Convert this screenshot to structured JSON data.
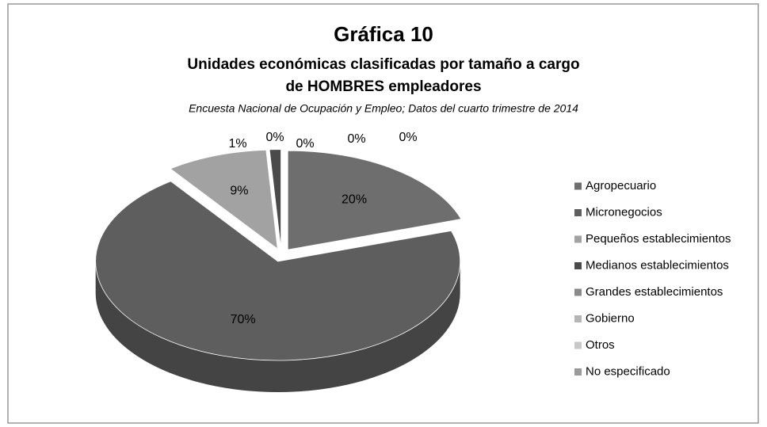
{
  "chart_data": {
    "type": "pie3d",
    "title": "Gráfica 10",
    "subtitle": [
      "Unidades económicas clasificadas por tamaño a cargo",
      "de HOMBRES empleadores"
    ],
    "caption": "Encuesta Nacional de Ocupación y Empleo; Datos del cuarto trimestre de 2014",
    "categories": [
      "Agropecuario",
      "Micronegocios",
      "Pequeños establecimientos",
      "Medianos establecimientos",
      "Grandes establecimientos",
      "Gobierno",
      "Otros",
      "No especificado"
    ],
    "values": [
      20,
      70,
      9,
      1,
      0,
      0,
      0,
      0
    ],
    "value_labels": [
      "20%",
      "70%",
      "9%",
      "1%",
      "0%",
      "0%",
      "0%",
      "0%"
    ],
    "colors": [
      "#6e6e6e",
      "#5e5e5e",
      "#a2a2a2",
      "#4a4a4a",
      "#8a8a8a",
      "#b5b5b5",
      "#c8c8c8",
      "#9a9a9a"
    ],
    "legend": "right"
  }
}
